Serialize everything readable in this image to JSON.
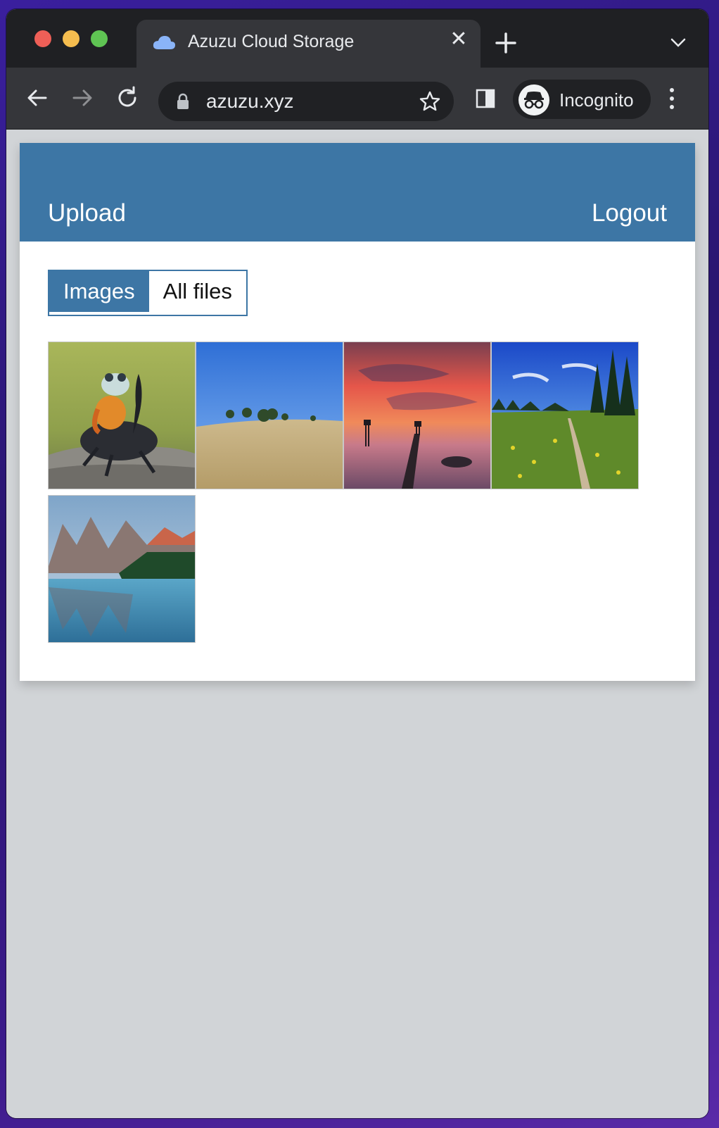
{
  "browser": {
    "tab_title": "Azuzu Cloud Storage",
    "tab_close": "✕",
    "url": "azuzu.xyz",
    "profile_label": "Incognito",
    "icons": [
      "cloud-icon",
      "close-icon",
      "plus-icon",
      "chevron-down-icon",
      "back-arrow-icon",
      "forward-arrow-icon",
      "reload-icon",
      "lock-icon",
      "star-icon",
      "side-panel-icon",
      "incognito-icon",
      "kebab-menu-icon"
    ]
  },
  "header": {
    "upload_label": "Upload",
    "logout_label": "Logout"
  },
  "filter_tabs": [
    {
      "label": "Images",
      "active": true
    },
    {
      "label": "All files",
      "active": false
    }
  ],
  "images": [
    {
      "subject": "frog riding beetle"
    },
    {
      "subject": "golden grass field with trees"
    },
    {
      "subject": "red sunset sky over pier"
    },
    {
      "subject": "mountain meadow with trail"
    },
    {
      "subject": "mountain lake reflection"
    }
  ],
  "colors": {
    "accent": "#3d76a5",
    "page_bg": "#d1d4d7",
    "chrome_dark": "#35363a"
  }
}
